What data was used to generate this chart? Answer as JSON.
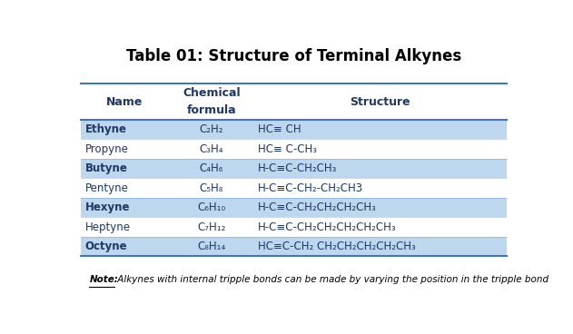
{
  "title": "Table 01: Structure of Terminal Alkynes",
  "title_fontsize": 12,
  "title_fontweight": "bold",
  "border_color": "#4472C4",
  "row_bg_odd": "#BDD7EE",
  "row_bg_even": "#FFFFFF",
  "rows": [
    {
      "name": "Ethyne",
      "formula": "C₂H₂",
      "structure": "HC≡ CH",
      "bold": true,
      "bg": "#BDD7EE"
    },
    {
      "name": "Propyne",
      "formula": "C₃H₄",
      "structure": "HC≡ C-CH₃",
      "bold": false,
      "bg": "#FFFFFF"
    },
    {
      "name": "Butyne",
      "formula": "C₄H₆",
      "structure": "H-C≡C-CH₂CH₃",
      "bold": true,
      "bg": "#BDD7EE"
    },
    {
      "name": "Pentyne",
      "formula": "C₅H₈",
      "structure": "H-C≡C-CH₂-CH₂CH3",
      "bold": false,
      "bg": "#FFFFFF"
    },
    {
      "name": "Hexyne",
      "formula": "C₆H₁₀",
      "structure": "H-C≡C-CH₂CH₂CH₂CH₃",
      "bold": true,
      "bg": "#BDD7EE"
    },
    {
      "name": "Heptyne",
      "formula": "C₇H₁₂",
      "structure": "H-C≡C-CH₂CH₂CH₂CH₂CH₃",
      "bold": false,
      "bg": "#FFFFFF"
    },
    {
      "name": "Octyne",
      "formula": "C₈H₁₄",
      "structure": "HC≡C-CH₂ CH₂CH₂CH₂CH₂CH₃",
      "bold": true,
      "bg": "#BDD7EE"
    }
  ],
  "note_bold": "Note:",
  "note_text": " Alkynes with internal tripple bonds can be made by varying the position in the tripple bond",
  "background": "#FFFFFF",
  "text_color": "#1F3864",
  "header_text_color": "#1F3864"
}
